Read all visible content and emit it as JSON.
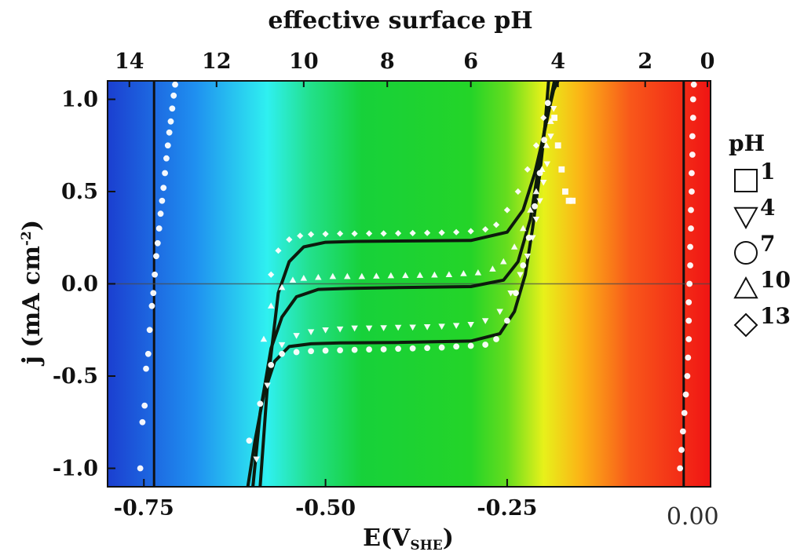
{
  "chart_data": {
    "type": "line",
    "xlabel": {
      "main": "E(V",
      "sub": "SHE",
      "close": ")"
    },
    "ylabel": {
      "main": "j (mA cm",
      "sup": "-2",
      "close": ")"
    },
    "top_axis_label": "effective surface pH",
    "xlim": [
      -0.8,
      0.03
    ],
    "ylim": [
      -1.1,
      1.1
    ],
    "x_ticks": [
      {
        "value": -0.75,
        "label": "-0.75"
      },
      {
        "value": -0.5,
        "label": "-0.50"
      },
      {
        "value": -0.25,
        "label": "-0.25"
      }
    ],
    "x_extra_label": {
      "value": 0.0,
      "label": "0.00"
    },
    "y_ticks": [
      {
        "value": 1.0,
        "label": "1.0"
      },
      {
        "value": 0.5,
        "label": "0.5"
      },
      {
        "value": 0.0,
        "label": "0.0"
      },
      {
        "value": -0.5,
        "label": "-0.5"
      },
      {
        "value": -1.0,
        "label": "-1.0"
      }
    ],
    "top_ticks": [
      {
        "value": -0.77,
        "label": "14"
      },
      {
        "value": -0.65,
        "label": "12"
      },
      {
        "value": -0.53,
        "label": "10"
      },
      {
        "value": -0.415,
        "label": "8"
      },
      {
        "value": -0.3,
        "label": "6"
      },
      {
        "value": -0.18,
        "label": "4"
      },
      {
        "value": -0.06,
        "label": "2"
      },
      {
        "value": 0.055,
        "label": "0"
      }
    ],
    "background_gradient": [
      {
        "value": -0.8,
        "color": "#1b3fd0"
      },
      {
        "value": -0.68,
        "color": "#1f8ff0"
      },
      {
        "value": -0.58,
        "color": "#2ff0f0"
      },
      {
        "value": -0.52,
        "color": "#22e08a"
      },
      {
        "value": -0.45,
        "color": "#17d13a"
      },
      {
        "value": -0.3,
        "color": "#24d428"
      },
      {
        "value": -0.25,
        "color": "#66dd1e"
      },
      {
        "value": -0.2,
        "color": "#e7f11a"
      },
      {
        "value": -0.15,
        "color": "#fbb516"
      },
      {
        "value": -0.08,
        "color": "#f8571a"
      },
      {
        "value": 0.03,
        "color": "#f01414"
      }
    ],
    "vertical_lines": [
      -0.736,
      -0.007
    ],
    "legend_title": "pH",
    "legend": [
      {
        "name": "1",
        "marker": "square"
      },
      {
        "name": "4",
        "marker": "triangle-down"
      },
      {
        "name": "7",
        "marker": "circle"
      },
      {
        "name": "10",
        "marker": "triangle-up"
      },
      {
        "name": "13",
        "marker": "diamond"
      }
    ],
    "fit_lines": [
      {
        "x": [
          -0.607,
          -0.597,
          -0.585,
          -0.57,
          -0.55,
          -0.52,
          -0.48,
          -0.4,
          -0.3,
          -0.26,
          -0.24,
          -0.225,
          -0.215,
          -0.205,
          -0.198,
          -0.193
        ],
        "y": [
          -1.1,
          -0.85,
          -0.6,
          -0.42,
          -0.34,
          -0.325,
          -0.32,
          -0.318,
          -0.31,
          -0.27,
          -0.15,
          0.05,
          0.3,
          0.6,
          0.85,
          1.1
        ]
      },
      {
        "x": [
          -0.6,
          -0.59,
          -0.575,
          -0.56,
          -0.54,
          -0.51,
          -0.47,
          -0.4,
          -0.3,
          -0.255,
          -0.235,
          -0.218,
          -0.208,
          -0.198,
          -0.19,
          -0.185
        ],
        "y": [
          -1.1,
          -0.7,
          -0.35,
          -0.18,
          -0.07,
          -0.03,
          -0.025,
          -0.02,
          -0.015,
          0.02,
          0.12,
          0.35,
          0.6,
          0.85,
          1.0,
          1.1
        ]
      },
      {
        "x": [
          -0.59,
          -0.58,
          -0.565,
          -0.55,
          -0.53,
          -0.5,
          -0.46,
          -0.4,
          -0.3,
          -0.25,
          -0.228,
          -0.212,
          -0.2,
          -0.192,
          -0.186,
          -0.18
        ],
        "y": [
          -1.1,
          -0.55,
          -0.05,
          0.12,
          0.2,
          0.225,
          0.23,
          0.232,
          0.235,
          0.28,
          0.4,
          0.6,
          0.8,
          0.95,
          1.05,
          1.1
        ]
      }
    ],
    "marker_series": [
      {
        "name": "4",
        "marker": "triangle-down",
        "x": [
          -0.595,
          -0.58,
          -0.56,
          -0.54,
          -0.52,
          -0.5,
          -0.48,
          -0.46,
          -0.44,
          -0.42,
          -0.4,
          -0.38,
          -0.36,
          -0.34,
          -0.32,
          -0.3,
          -0.28,
          -0.26,
          -0.245,
          -0.232,
          -0.222,
          -0.215,
          -0.21,
          -0.205,
          -0.2,
          -0.195,
          -0.19,
          -0.186
        ],
        "y": [
          -0.95,
          -0.55,
          -0.33,
          -0.28,
          -0.26,
          -0.25,
          -0.245,
          -0.24,
          -0.24,
          -0.238,
          -0.236,
          -0.235,
          -0.233,
          -0.23,
          -0.226,
          -0.22,
          -0.2,
          -0.15,
          -0.05,
          0.05,
          0.15,
          0.25,
          0.35,
          0.45,
          0.55,
          0.65,
          0.8,
          0.95
        ]
      },
      {
        "name": "7",
        "marker": "circle",
        "x": [
          -0.605,
          -0.59,
          -0.575,
          -0.56,
          -0.54,
          -0.52,
          -0.5,
          -0.48,
          -0.46,
          -0.44,
          -0.42,
          -0.4,
          -0.38,
          -0.36,
          -0.34,
          -0.32,
          -0.3,
          -0.28,
          -0.265,
          -0.25,
          -0.238,
          -0.228,
          -0.22,
          -0.212,
          -0.205,
          -0.199,
          -0.194
        ],
        "y": [
          -0.85,
          -0.65,
          -0.44,
          -0.38,
          -0.37,
          -0.365,
          -0.362,
          -0.36,
          -0.358,
          -0.356,
          -0.355,
          -0.352,
          -0.35,
          -0.348,
          -0.345,
          -0.34,
          -0.336,
          -0.33,
          -0.3,
          -0.2,
          -0.05,
          0.1,
          0.25,
          0.42,
          0.6,
          0.78,
          0.98
        ]
      },
      {
        "name": "10",
        "marker": "triangle-up",
        "x": [
          -0.585,
          -0.575,
          -0.56,
          -0.545,
          -0.53,
          -0.51,
          -0.49,
          -0.47,
          -0.45,
          -0.43,
          -0.41,
          -0.39,
          -0.37,
          -0.35,
          -0.33,
          -0.31,
          -0.29,
          -0.27,
          -0.255,
          -0.24,
          -0.228,
          -0.218,
          -0.21,
          -0.202,
          -0.196,
          -0.19
        ],
        "y": [
          -0.3,
          -0.12,
          -0.02,
          0.02,
          0.03,
          0.035,
          0.04,
          0.04,
          0.04,
          0.042,
          0.044,
          0.045,
          0.046,
          0.048,
          0.05,
          0.055,
          0.06,
          0.08,
          0.12,
          0.2,
          0.3,
          0.4,
          0.5,
          0.62,
          0.75,
          0.88
        ]
      },
      {
        "name": "13",
        "marker": "diamond",
        "x": [
          -0.575,
          -0.565,
          -0.55,
          -0.535,
          -0.52,
          -0.5,
          -0.48,
          -0.46,
          -0.44,
          -0.42,
          -0.4,
          -0.38,
          -0.36,
          -0.34,
          -0.32,
          -0.3,
          -0.28,
          -0.265,
          -0.25,
          -0.235,
          -0.222,
          -0.21,
          -0.2
        ],
        "y": [
          0.05,
          0.18,
          0.24,
          0.26,
          0.268,
          0.27,
          0.272,
          0.272,
          0.273,
          0.273,
          0.274,
          0.275,
          0.276,
          0.277,
          0.28,
          0.285,
          0.295,
          0.32,
          0.4,
          0.5,
          0.62,
          0.75,
          0.9
        ]
      },
      {
        "name": "1",
        "marker": "square",
        "x": [
          -0.185,
          -0.18,
          -0.175,
          -0.17,
          -0.165,
          -0.16
        ],
        "y": [
          0.9,
          0.75,
          0.62,
          0.5,
          0.45,
          0.45
        ]
      },
      {
        "name": "left",
        "marker": "circle",
        "x": [
          -0.755,
          -0.752,
          -0.749,
          -0.747,
          -0.744,
          -0.742,
          -0.739,
          -0.737,
          -0.735,
          -0.733,
          -0.731,
          -0.729,
          -0.727,
          -0.725,
          -0.723,
          -0.721,
          -0.719,
          -0.717,
          -0.715,
          -0.713,
          -0.711,
          -0.709,
          -0.707
        ],
        "y": [
          -1.0,
          -0.75,
          -0.66,
          -0.46,
          -0.38,
          -0.25,
          -0.12,
          -0.05,
          0.05,
          0.15,
          0.22,
          0.3,
          0.38,
          0.45,
          0.52,
          0.6,
          0.68,
          0.75,
          0.82,
          0.88,
          0.95,
          1.02,
          1.08
        ]
      },
      {
        "name": "right",
        "marker": "circle",
        "x": [
          -0.012,
          -0.01,
          -0.008,
          -0.006,
          -0.004,
          -0.002,
          -0.001,
          0.0,
          0.0,
          0.0,
          0.001,
          0.002,
          0.002,
          0.003,
          0.003,
          0.004,
          0.004,
          0.005,
          0.005,
          0.006,
          0.006,
          0.007
        ],
        "y": [
          -1.0,
          -0.9,
          -0.8,
          -0.7,
          -0.6,
          -0.5,
          -0.4,
          -0.3,
          -0.2,
          -0.1,
          0.0,
          0.1,
          0.2,
          0.3,
          0.4,
          0.5,
          0.6,
          0.7,
          0.8,
          0.9,
          1.0,
          1.08
        ]
      }
    ]
  }
}
